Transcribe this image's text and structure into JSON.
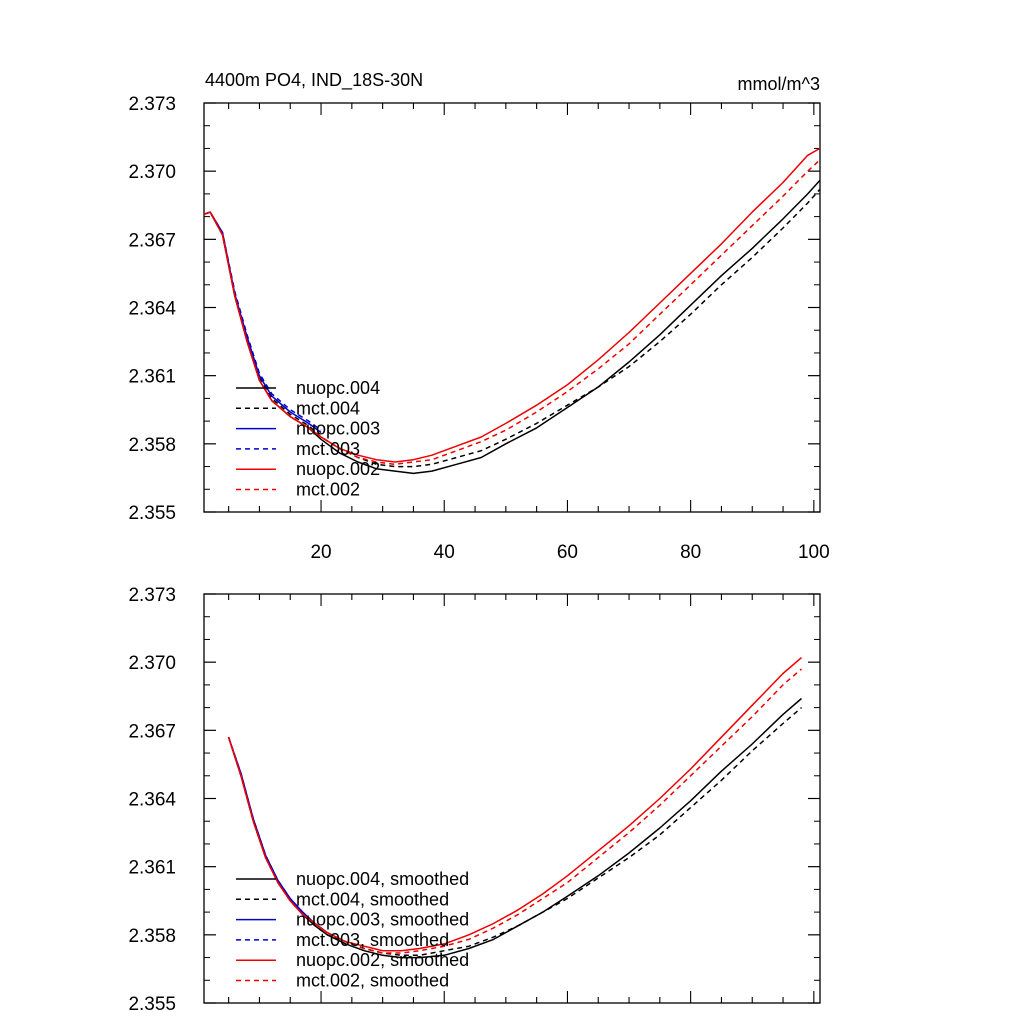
{
  "figure": {
    "title": "4400m PO4, IND_18S-30N",
    "units": "mmol/m^3"
  },
  "chart_data": [
    {
      "type": "line",
      "panel": "raw",
      "title": "4400m PO4, IND_18S-30N",
      "units_label": "mmol/m^3",
      "xlim": [
        1,
        101
      ],
      "ylim": [
        2.355,
        2.373
      ],
      "x_ticks": [
        20,
        40,
        60,
        80,
        100
      ],
      "x_tick_labels": [
        "20",
        "40",
        "60",
        "80",
        "100"
      ],
      "y_ticks": [
        2.355,
        2.358,
        2.361,
        2.364,
        2.367,
        2.37,
        2.373
      ],
      "y_tick_labels": [
        "2.355",
        "2.358",
        "2.361",
        "2.364",
        "2.367",
        "2.370",
        "2.373"
      ],
      "legend_position": "lower-left",
      "series": [
        {
          "name": "nuopc.004",
          "color": "#000000",
          "dash": "solid",
          "x": [
            1,
            2,
            4,
            6,
            8,
            10,
            12,
            15,
            18,
            20,
            23,
            26,
            29,
            32,
            35,
            38,
            42,
            46,
            50,
            55,
            60,
            65,
            70,
            75,
            80,
            85,
            90,
            95,
            99,
            101
          ],
          "y": [
            2.3681,
            2.3682,
            2.3672,
            2.3645,
            2.3625,
            2.3608,
            2.3599,
            2.3592,
            2.3587,
            2.3582,
            2.3576,
            2.3572,
            2.3569,
            2.3568,
            2.3567,
            2.3568,
            2.3571,
            2.3574,
            2.358,
            2.3587,
            2.3596,
            2.3605,
            2.3616,
            2.3628,
            2.3641,
            2.3654,
            2.3666,
            2.3679,
            2.369,
            2.3696
          ]
        },
        {
          "name": "mct.004",
          "color": "#000000",
          "dash": "dashed",
          "x": [
            1,
            2,
            4,
            6,
            8,
            10,
            12,
            15,
            18,
            20,
            23,
            26,
            29,
            32,
            35,
            38,
            42,
            46,
            50,
            55,
            60,
            65,
            70,
            75,
            80,
            85,
            90,
            95,
            99,
            101
          ],
          "y": [
            2.3681,
            2.3682,
            2.3672,
            2.3646,
            2.3626,
            2.3609,
            2.36,
            2.3593,
            2.3588,
            2.3583,
            2.3578,
            2.3574,
            2.3571,
            2.357,
            2.357,
            2.3571,
            2.3574,
            2.3577,
            2.3582,
            2.3589,
            2.3597,
            2.3605,
            2.3614,
            2.3625,
            2.3637,
            2.365,
            2.3662,
            2.3675,
            2.3686,
            2.3692
          ]
        },
        {
          "name": "nuopc.003",
          "color": "#0000cc",
          "dash": "solid",
          "x": [
            1,
            2,
            4,
            6,
            8,
            10,
            12,
            15,
            18,
            20
          ],
          "y": [
            2.3681,
            2.3682,
            2.3673,
            2.3646,
            2.3627,
            2.361,
            2.3601,
            2.3594,
            2.3589,
            2.3585
          ]
        },
        {
          "name": "mct.003",
          "color": "#0000cc",
          "dash": "dashed",
          "x": [
            1,
            2,
            4,
            6,
            8,
            10,
            12,
            15,
            18,
            20
          ],
          "y": [
            2.3681,
            2.3682,
            2.3673,
            2.3647,
            2.3628,
            2.3611,
            2.3602,
            2.3595,
            2.359,
            2.3586
          ]
        },
        {
          "name": "nuopc.002",
          "color": "#ee0000",
          "dash": "solid",
          "x": [
            1,
            2,
            4,
            6,
            8,
            10,
            12,
            15,
            18,
            20,
            23,
            26,
            29,
            32,
            35,
            38,
            42,
            46,
            50,
            55,
            60,
            65,
            70,
            75,
            80,
            85,
            90,
            95,
            99,
            101
          ],
          "y": [
            2.3681,
            2.3682,
            2.3672,
            2.3645,
            2.3625,
            2.3608,
            2.3599,
            2.3592,
            2.3587,
            2.3583,
            2.3578,
            2.3575,
            2.3573,
            2.3572,
            2.3573,
            2.3575,
            2.3579,
            2.3583,
            2.3589,
            2.3597,
            2.3606,
            2.3617,
            2.3629,
            2.3642,
            2.3655,
            2.3668,
            2.3682,
            2.3695,
            2.3707,
            2.371
          ]
        },
        {
          "name": "mct.002",
          "color": "#ee0000",
          "dash": "dashed",
          "x": [
            1,
            2,
            4,
            6,
            8,
            10,
            12,
            15,
            18,
            20,
            23,
            26,
            29,
            32,
            35,
            38,
            42,
            46,
            50,
            55,
            60,
            65,
            70,
            75,
            80,
            85,
            90,
            95,
            99,
            101
          ],
          "y": [
            2.3681,
            2.3682,
            2.3672,
            2.3645,
            2.3625,
            2.3608,
            2.3599,
            2.3592,
            2.3587,
            2.3583,
            2.3578,
            2.3574,
            2.3572,
            2.3571,
            2.3572,
            2.3573,
            2.3577,
            2.3581,
            2.3586,
            2.3594,
            2.3603,
            2.3613,
            2.3624,
            2.3637,
            2.365,
            2.3663,
            2.3676,
            2.3689,
            2.37,
            2.3705
          ]
        }
      ]
    },
    {
      "type": "line",
      "panel": "smoothed",
      "xlim": [
        1,
        101
      ],
      "ylim": [
        2.355,
        2.373
      ],
      "y_ticks": [
        2.355,
        2.358,
        2.361,
        2.364,
        2.367,
        2.37,
        2.373
      ],
      "y_tick_labels": [
        "2.355",
        "2.358",
        "2.361",
        "2.364",
        "2.367",
        "2.370",
        "2.373"
      ],
      "legend_position": "lower-left",
      "series": [
        {
          "name": "nuopc.004, smoothed",
          "color": "#000000",
          "dash": "solid",
          "x": [
            5,
            7,
            9,
            11,
            13,
            15,
            17,
            19,
            21,
            24,
            27,
            30,
            33,
            36,
            40,
            44,
            48,
            52,
            56,
            60,
            65,
            70,
            75,
            80,
            85,
            90,
            95,
            98
          ],
          "y": [
            2.3667,
            2.365,
            2.363,
            2.3614,
            2.3603,
            2.3595,
            2.3589,
            2.3584,
            2.358,
            2.3576,
            2.3573,
            2.3571,
            2.357,
            2.357,
            2.3571,
            2.3574,
            2.3578,
            2.3584,
            2.359,
            2.3597,
            2.3606,
            2.3616,
            2.3627,
            2.3639,
            2.3652,
            2.3664,
            2.3677,
            2.3684
          ]
        },
        {
          "name": "mct.004, smoothed",
          "color": "#000000",
          "dash": "dashed",
          "x": [
            5,
            7,
            9,
            11,
            13,
            15,
            17,
            19,
            21,
            24,
            27,
            30,
            33,
            36,
            40,
            44,
            48,
            52,
            56,
            60,
            65,
            70,
            75,
            80,
            85,
            90,
            95,
            98
          ],
          "y": [
            2.3667,
            2.365,
            2.363,
            2.3614,
            2.3603,
            2.3595,
            2.3589,
            2.3584,
            2.358,
            2.3577,
            2.3574,
            2.3572,
            2.3571,
            2.3571,
            2.3573,
            2.3575,
            2.3579,
            2.3584,
            2.359,
            2.3596,
            2.3605,
            2.3614,
            2.3624,
            2.3636,
            2.3648,
            2.3661,
            2.3673,
            2.368
          ]
        },
        {
          "name": "nuopc.003, smoothed",
          "color": "#0000cc",
          "dash": "solid",
          "x": [
            5,
            7,
            9,
            11,
            13,
            15,
            17,
            19,
            21
          ],
          "y": [
            2.3667,
            2.3651,
            2.3631,
            2.3615,
            2.3604,
            2.3596,
            2.359,
            2.3585,
            2.3581
          ]
        },
        {
          "name": "mct.003, smoothed",
          "color": "#0000cc",
          "dash": "dashed",
          "x": [
            5,
            7,
            9,
            11,
            13,
            15,
            17,
            19,
            21
          ],
          "y": [
            2.3667,
            2.3651,
            2.3631,
            2.3615,
            2.3604,
            2.3596,
            2.359,
            2.3585,
            2.3581
          ]
        },
        {
          "name": "nuopc.002, smoothed",
          "color": "#ee0000",
          "dash": "solid",
          "x": [
            5,
            7,
            9,
            11,
            13,
            15,
            17,
            19,
            21,
            24,
            27,
            30,
            33,
            36,
            40,
            44,
            48,
            52,
            56,
            60,
            65,
            70,
            75,
            80,
            85,
            90,
            95,
            98
          ],
          "y": [
            2.3667,
            2.365,
            2.363,
            2.3614,
            2.3603,
            2.3595,
            2.3589,
            2.3585,
            2.3581,
            2.3577,
            2.3575,
            2.3573,
            2.3573,
            2.3574,
            2.3576,
            2.358,
            2.3585,
            2.3591,
            2.3598,
            2.3606,
            2.3617,
            2.3628,
            2.364,
            2.3653,
            2.3667,
            2.3681,
            2.3695,
            2.3702
          ]
        },
        {
          "name": "mct.002, smoothed",
          "color": "#ee0000",
          "dash": "dashed",
          "x": [
            5,
            7,
            9,
            11,
            13,
            15,
            17,
            19,
            21,
            24,
            27,
            30,
            33,
            36,
            40,
            44,
            48,
            52,
            56,
            60,
            65,
            70,
            75,
            80,
            85,
            90,
            95,
            98
          ],
          "y": [
            2.3667,
            2.365,
            2.363,
            2.3614,
            2.3603,
            2.3595,
            2.3589,
            2.3585,
            2.3581,
            2.3577,
            2.3574,
            2.3572,
            2.3572,
            2.3573,
            2.3575,
            2.3578,
            2.3583,
            2.3589,
            2.3596,
            2.3603,
            2.3614,
            2.3625,
            2.3637,
            2.365,
            2.3663,
            2.3676,
            2.369,
            2.3697
          ]
        }
      ]
    }
  ]
}
